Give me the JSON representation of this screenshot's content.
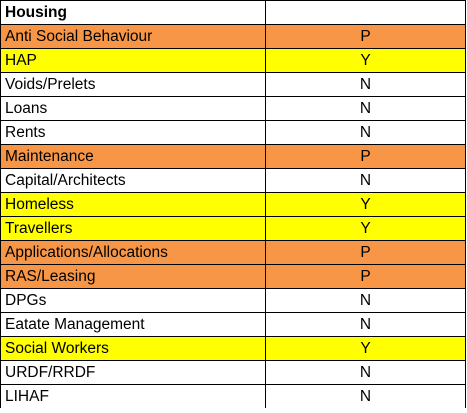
{
  "header": {
    "title": "Housing",
    "value": ""
  },
  "colors": {
    "P": "#f79646",
    "Y": "#ffff00",
    "N": "#ffffff",
    "header": "#ffffff"
  },
  "rows": [
    {
      "label": "Anti Social Behaviour",
      "value": "P"
    },
    {
      "label": "HAP",
      "value": "Y"
    },
    {
      "label": "Voids/Prelets",
      "value": "N"
    },
    {
      "label": "Loans",
      "value": "N"
    },
    {
      "label": "Rents",
      "value": "N"
    },
    {
      "label": "Maintenance",
      "value": "P"
    },
    {
      "label": "Capital/Architects",
      "value": "N"
    },
    {
      "label": "Homeless",
      "value": "Y"
    },
    {
      "label": "Travellers",
      "value": "Y"
    },
    {
      "label": "Applications/Allocations",
      "value": "P"
    },
    {
      "label": "RAS/Leasing",
      "value": "P"
    },
    {
      "label": "DPGs",
      "value": "N"
    },
    {
      "label": "Eatate Management",
      "value": "N"
    },
    {
      "label": "Social Workers",
      "value": "Y"
    },
    {
      "label": "URDF/RRDF",
      "value": "N"
    },
    {
      "label": "LIHAF",
      "value": "N"
    }
  ]
}
